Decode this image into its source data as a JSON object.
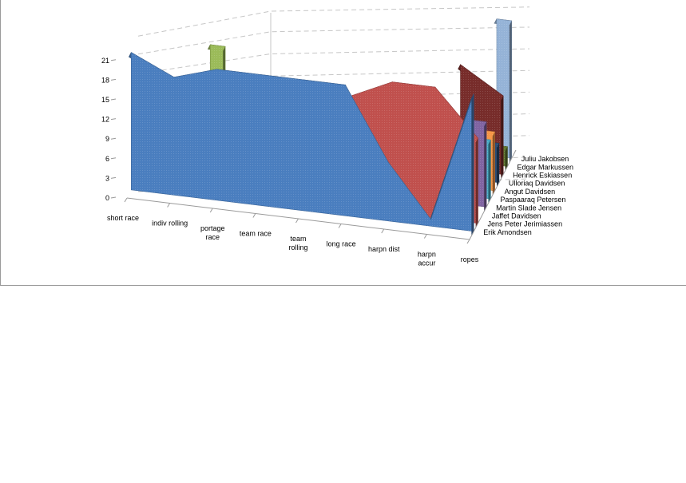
{
  "chart_data": {
    "type": "area",
    "three_d": true,
    "categories": [
      "short race",
      "indiv rolling",
      "portage race",
      "team race",
      "team rolling",
      "long race",
      "harpn dist",
      "harpn accur",
      "ropes"
    ],
    "series_axis_labels": [
      "Erik Amondsen",
      "Jens Peter Jerimiassen",
      "Jaffet Davidsen",
      "Martin Slade Jensen",
      "Paspaaraq Petersen",
      "Angut Davidsen",
      "Ulloriaq Davidsen",
      "Henrick Eskiassen",
      "Edgar Markussen",
      "Juliu Jakobsen"
    ],
    "series": [
      {
        "name": "Erik Amondsen",
        "color": "#4a7ebf",
        "values": [
          21,
          18,
          20,
          20,
          20,
          20,
          9,
          1,
          21
        ]
      },
      {
        "name": "Jens Peter Jerimiassen",
        "color": "#c0504d",
        "values": [
          null,
          null,
          null,
          null,
          null,
          17,
          20,
          20,
          13
        ]
      },
      {
        "name": "Jaffet Davidsen",
        "color": "#9bbb59",
        "values": [
          null,
          null,
          21,
          null,
          null,
          null,
          null,
          null,
          null
        ]
      },
      {
        "name": "Martin Slade Jensen",
        "color": "#8064a2",
        "values": [
          null,
          null,
          null,
          null,
          null,
          null,
          null,
          null,
          13
        ]
      },
      {
        "name": "Paspaaraq Petersen",
        "color": "#4bacc6",
        "values": [
          null,
          null,
          null,
          null,
          null,
          null,
          null,
          null,
          9
        ]
      },
      {
        "name": "Angut Davidsen",
        "color": "#f79646",
        "values": [
          null,
          null,
          null,
          null,
          null,
          null,
          null,
          null,
          9
        ]
      },
      {
        "name": "Ulloriaq Davidsen",
        "color": "#2c4d75",
        "values": [
          null,
          null,
          null,
          null,
          null,
          null,
          null,
          null,
          6
        ]
      },
      {
        "name": "Henrick Eskiassen",
        "color": "#772c2a",
        "values": [
          null,
          null,
          null,
          null,
          null,
          null,
          null,
          16,
          12
        ]
      },
      {
        "name": "Edgar Markussen",
        "color": "#5f7530",
        "values": [
          null,
          null,
          null,
          null,
          null,
          null,
          null,
          null,
          3
        ]
      },
      {
        "name": "Juliu Jakobsen",
        "color": "#95b3d7",
        "values": [
          null,
          null,
          null,
          null,
          null,
          null,
          null,
          null,
          21
        ]
      }
    ],
    "y_ticks": [
      "0",
      "3",
      "6",
      "9",
      "12",
      "15",
      "18",
      "21"
    ],
    "ylim": [
      0,
      21
    ],
    "title": "",
    "xlabel": "",
    "ylabel": "",
    "grid": true
  }
}
